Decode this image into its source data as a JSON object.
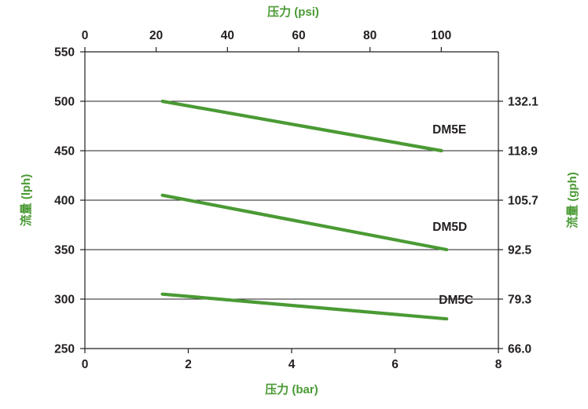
{
  "chart_data": {
    "type": "line",
    "xlabel": "压力 (bar)",
    "x2label": "压力 (psi)",
    "ylabel": "流量 (lph)",
    "y2label": "流量 (gph)",
    "xlim": [
      0,
      8
    ],
    "ylim": [
      250,
      550
    ],
    "xticks": [
      0,
      2,
      4,
      6,
      8
    ],
    "x2ticks": [
      0,
      20,
      40,
      60,
      80,
      100
    ],
    "yticks": [
      250,
      300,
      350,
      400,
      450,
      500,
      550
    ],
    "y2ticks": [
      {
        "at": 250,
        "label": "66.0"
      },
      {
        "at": 300,
        "label": "79.3"
      },
      {
        "at": 350,
        "label": "92.5"
      },
      {
        "at": 400,
        "label": "105.7"
      },
      {
        "at": 450,
        "label": "118.9"
      },
      {
        "at": 500,
        "label": "132.1"
      }
    ],
    "grid": "horizontal",
    "series": [
      {
        "name": "DM5E",
        "x": [
          1.5,
          6.9
        ],
        "y": [
          500,
          450
        ]
      },
      {
        "name": "DM5D",
        "x": [
          1.5,
          7.0
        ],
        "y": [
          405,
          350
        ]
      },
      {
        "name": "DM5C",
        "x": [
          1.5,
          7.0
        ],
        "y": [
          305,
          280
        ]
      }
    ],
    "colors": {
      "line": "#4a9a34",
      "title": "#4a9a34",
      "axis": "#231f20",
      "grid": "#231f20"
    }
  }
}
